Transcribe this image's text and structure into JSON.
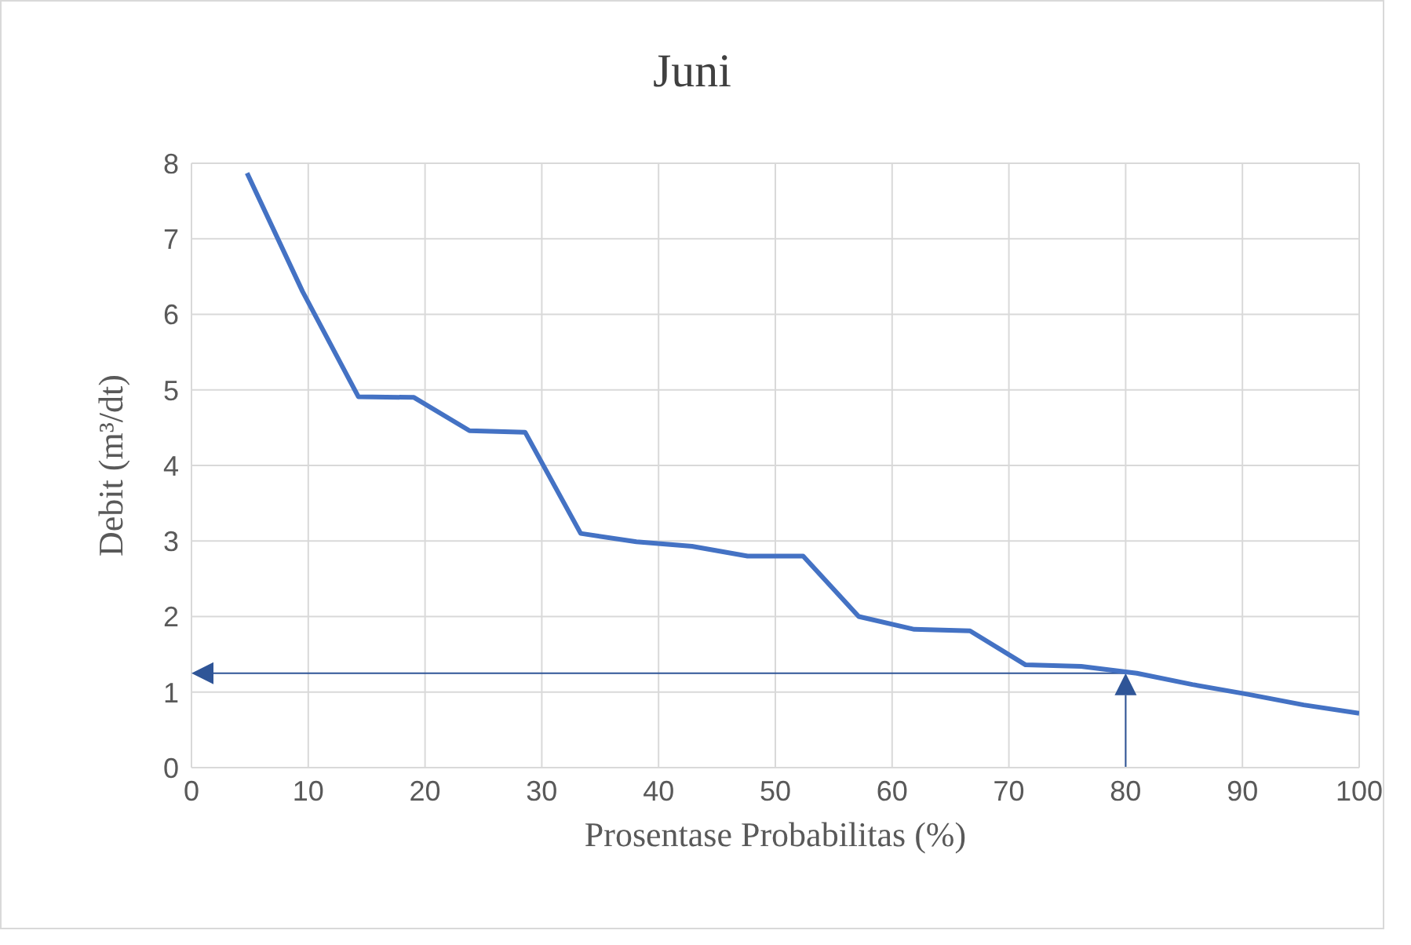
{
  "chart_data": {
    "type": "line",
    "title": "Juni",
    "xlabel": "Prosentase Probabilitas (%)",
    "ylabel": "Debit (m³/dt)",
    "x": [
      4.76,
      9.52,
      14.29,
      19.05,
      23.81,
      28.57,
      33.33,
      38.1,
      42.86,
      47.62,
      52.38,
      57.14,
      61.9,
      66.67,
      71.43,
      76.19,
      80.95,
      85.71,
      90.48,
      95.24,
      100
    ],
    "series": [
      {
        "color": "#4472c4",
        "values": [
          7.87,
          6.3,
          4.91,
          4.9,
          4.46,
          4.44,
          3.1,
          2.99,
          2.93,
          2.8,
          2.8,
          2.0,
          1.83,
          1.81,
          1.36,
          1.34,
          1.25,
          1.1,
          0.97,
          0.83,
          0.72
        ]
      }
    ],
    "xlim": [
      0,
      100
    ],
    "xticks": [
      0,
      10,
      20,
      30,
      40,
      50,
      60,
      70,
      80,
      90,
      100
    ],
    "ylim": [
      0,
      8
    ],
    "yticks": [
      0,
      1,
      2,
      3,
      4,
      5,
      6,
      7,
      8
    ],
    "ref_lines": [
      {
        "axis": "x",
        "value": 80,
        "color": "#2f5597"
      },
      {
        "axis": "y",
        "value": 1.25,
        "color": "#2f5597"
      }
    ],
    "grid": true,
    "legend": false,
    "marker": "none",
    "line_style": "solid"
  }
}
